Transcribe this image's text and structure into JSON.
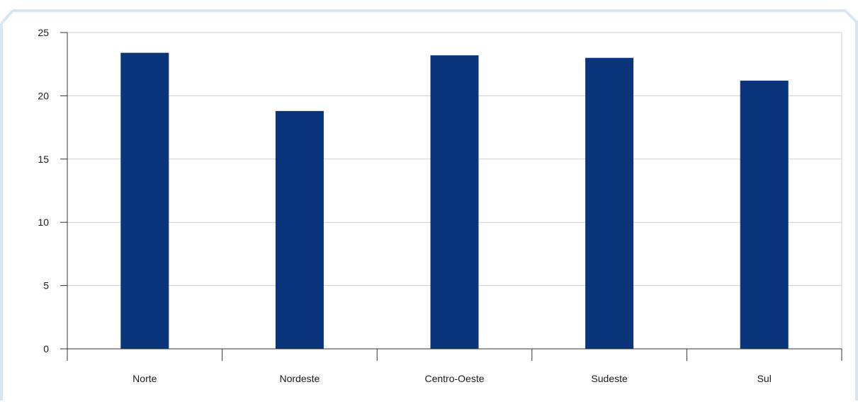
{
  "chart_data": {
    "type": "bar",
    "categories": [
      "Norte",
      "Nordeste",
      "Centro-Oeste",
      "Sudeste",
      "Sul"
    ],
    "values": [
      23.4,
      18.8,
      23.2,
      23.0,
      21.2
    ],
    "title": "",
    "xlabel": "",
    "ylabel": "",
    "ylim": [
      0,
      25
    ],
    "yticks": [
      0,
      5,
      10,
      15,
      20,
      25
    ],
    "grid": true,
    "legend": "none",
    "bar_color": "#0B357A",
    "grid_color": "#D0D0D0",
    "frame_color": "#D8E6F4"
  }
}
